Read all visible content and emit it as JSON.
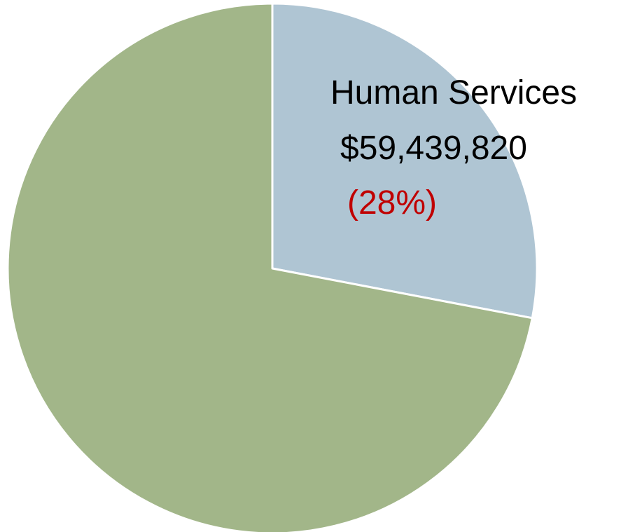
{
  "chart_data": {
    "type": "pie",
    "title": "",
    "legend": "none",
    "start_angle_deg": 0,
    "direction": "clockwise",
    "slices": [
      {
        "name": "Human Services",
        "amount_text": "$59,439,820",
        "percent_text": "(28%)",
        "percent": 28,
        "color": "#afc5d3",
        "labelled": true
      },
      {
        "name": "",
        "amount_text": "",
        "percent_text": "",
        "percent": 72,
        "color": "#a2b689",
        "labelled": false
      }
    ],
    "slice_border_color": "#ffffff",
    "percent_label_color": "#c00000"
  }
}
